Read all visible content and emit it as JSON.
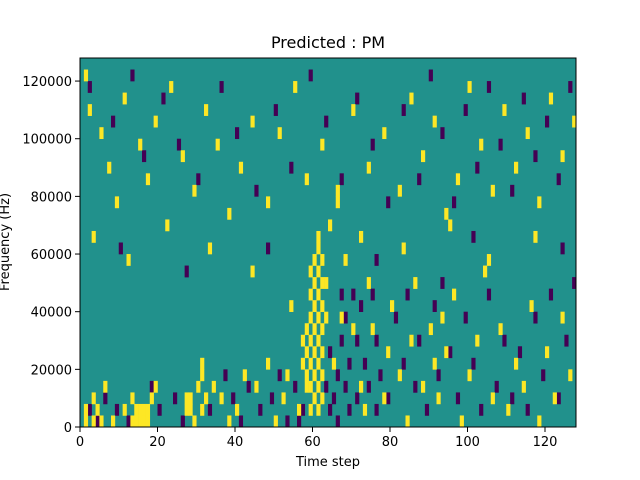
{
  "chart_data": {
    "type": "heatmap",
    "title": "Predicted : PM",
    "xlabel": "Time step",
    "ylabel": "Frequency (Hz)",
    "xlim": [
      0,
      128
    ],
    "ylim": [
      0,
      128000
    ],
    "x_ticks": [
      0,
      20,
      40,
      60,
      80,
      100,
      120
    ],
    "x_tick_labels": [
      "0",
      "20",
      "40",
      "60",
      "80",
      "100",
      "120"
    ],
    "y_ticks": [
      0,
      20000,
      40000,
      60000,
      80000,
      100000,
      120000
    ],
    "y_tick_labels": [
      "0",
      "20000",
      "40000",
      "60000",
      "80000",
      "100000",
      "120000"
    ],
    "time_steps": 128,
    "freq_bins": 32,
    "bin_height_hz": 4000,
    "colormap": {
      "low": "#440154",
      "mid": "#21918c",
      "high": "#fde725"
    },
    "background_value": "mid",
    "grid": false,
    "cells_high": [
      [
        1,
        0
      ],
      [
        1,
        1
      ],
      [
        3,
        0
      ],
      [
        3,
        2
      ],
      [
        4,
        1
      ],
      [
        5,
        0
      ],
      [
        6,
        3
      ],
      [
        8,
        0
      ],
      [
        11,
        1
      ],
      [
        13,
        2
      ],
      [
        13,
        0
      ],
      [
        14,
        1
      ],
      [
        14,
        0
      ],
      [
        15,
        0
      ],
      [
        15,
        1
      ],
      [
        16,
        1
      ],
      [
        16,
        0
      ],
      [
        17,
        0
      ],
      [
        17,
        1
      ],
      [
        18,
        2
      ],
      [
        19,
        3
      ],
      [
        27,
        1
      ],
      [
        27,
        2
      ],
      [
        28,
        1
      ],
      [
        28,
        2
      ],
      [
        29,
        0
      ],
      [
        30,
        3
      ],
      [
        31,
        1
      ],
      [
        31,
        4
      ],
      [
        31,
        5
      ],
      [
        32,
        2
      ],
      [
        34,
        3
      ],
      [
        36,
        2
      ],
      [
        38,
        0
      ],
      [
        40,
        1
      ],
      [
        42,
        4
      ],
      [
        45,
        3
      ],
      [
        48,
        5
      ],
      [
        50,
        0
      ],
      [
        52,
        2
      ],
      [
        53,
        4
      ],
      [
        54,
        10
      ],
      [
        56,
        1
      ],
      [
        57,
        5
      ],
      [
        57,
        7
      ],
      [
        58,
        3
      ],
      [
        58,
        4
      ],
      [
        58,
        6
      ],
      [
        58,
        8
      ],
      [
        59,
        1
      ],
      [
        59,
        3
      ],
      [
        59,
        5
      ],
      [
        59,
        7
      ],
      [
        59,
        9
      ],
      [
        59,
        11
      ],
      [
        59,
        13
      ],
      [
        60,
        2
      ],
      [
        60,
        4
      ],
      [
        60,
        6
      ],
      [
        60,
        8
      ],
      [
        60,
        10
      ],
      [
        60,
        12
      ],
      [
        60,
        14
      ],
      [
        61,
        1
      ],
      [
        61,
        3
      ],
      [
        61,
        5
      ],
      [
        61,
        7
      ],
      [
        61,
        9
      ],
      [
        61,
        11
      ],
      [
        61,
        13
      ],
      [
        61,
        15
      ],
      [
        61,
        16
      ],
      [
        62,
        2
      ],
      [
        62,
        4
      ],
      [
        62,
        6
      ],
      [
        62,
        8
      ],
      [
        62,
        10
      ],
      [
        62,
        12
      ],
      [
        62,
        14
      ],
      [
        63,
        9
      ],
      [
        63,
        12
      ],
      [
        64,
        17
      ],
      [
        65,
        5
      ],
      [
        66,
        20
      ],
      [
        67,
        9
      ],
      [
        68,
        14
      ],
      [
        70,
        8
      ],
      [
        72,
        3
      ],
      [
        73,
        1
      ],
      [
        74,
        12
      ],
      [
        75,
        8
      ],
      [
        78,
        2
      ],
      [
        79,
        6
      ],
      [
        80,
        10
      ],
      [
        82,
        4
      ],
      [
        84,
        0
      ],
      [
        85,
        7
      ],
      [
        86,
        12
      ],
      [
        88,
        3
      ],
      [
        90,
        8
      ],
      [
        91,
        5
      ],
      [
        92,
        2
      ],
      [
        93,
        9
      ],
      [
        94,
        6
      ],
      [
        96,
        11
      ],
      [
        98,
        0
      ],
      [
        100,
        4
      ],
      [
        102,
        7
      ],
      [
        104,
        13
      ],
      [
        106,
        2
      ],
      [
        108,
        8
      ],
      [
        110,
        1
      ],
      [
        112,
        5
      ],
      [
        114,
        3
      ],
      [
        116,
        10
      ],
      [
        118,
        0
      ],
      [
        120,
        6
      ],
      [
        122,
        2
      ],
      [
        124,
        9
      ],
      [
        126,
        4
      ],
      [
        1,
        30
      ],
      [
        2,
        27
      ],
      [
        5,
        25
      ],
      [
        7,
        22
      ],
      [
        9,
        19
      ],
      [
        11,
        28
      ],
      [
        15,
        24
      ],
      [
        17,
        21
      ],
      [
        19,
        26
      ],
      [
        23,
        29
      ],
      [
        26,
        23
      ],
      [
        29,
        20
      ],
      [
        32,
        27
      ],
      [
        35,
        24
      ],
      [
        38,
        18
      ],
      [
        41,
        22
      ],
      [
        44,
        26
      ],
      [
        48,
        19
      ],
      [
        51,
        25
      ],
      [
        55,
        29
      ],
      [
        58,
        21
      ],
      [
        62,
        24
      ],
      [
        66,
        19
      ],
      [
        70,
        27
      ],
      [
        74,
        22
      ],
      [
        78,
        25
      ],
      [
        82,
        20
      ],
      [
        85,
        28
      ],
      [
        88,
        23
      ],
      [
        91,
        26
      ],
      [
        94,
        18
      ],
      [
        97,
        21
      ],
      [
        100,
        29
      ],
      [
        103,
        24
      ],
      [
        106,
        20
      ],
      [
        109,
        27
      ],
      [
        112,
        22
      ],
      [
        115,
        25
      ],
      [
        118,
        19
      ],
      [
        121,
        28
      ],
      [
        124,
        23
      ],
      [
        127,
        26
      ],
      [
        3,
        16
      ],
      [
        12,
        14
      ],
      [
        22,
        17
      ],
      [
        33,
        15
      ],
      [
        44,
        13
      ],
      [
        72,
        16
      ],
      [
        83,
        15
      ],
      [
        95,
        17
      ],
      [
        105,
        14
      ],
      [
        117,
        16
      ]
    ],
    "cells_low": [
      [
        2,
        1
      ],
      [
        4,
        0
      ],
      [
        6,
        2
      ],
      [
        9,
        1
      ],
      [
        12,
        0
      ],
      [
        18,
        3
      ],
      [
        20,
        1
      ],
      [
        24,
        2
      ],
      [
        26,
        0
      ],
      [
        33,
        1
      ],
      [
        37,
        4
      ],
      [
        39,
        2
      ],
      [
        41,
        0
      ],
      [
        43,
        3
      ],
      [
        46,
        1
      ],
      [
        49,
        2
      ],
      [
        51,
        4
      ],
      [
        53,
        0
      ],
      [
        55,
        3
      ],
      [
        56,
        0
      ],
      [
        57,
        1
      ],
      [
        63,
        3
      ],
      [
        64,
        1
      ],
      [
        64,
        6
      ],
      [
        65,
        2
      ],
      [
        66,
        0
      ],
      [
        66,
        4
      ],
      [
        67,
        7
      ],
      [
        67,
        11
      ],
      [
        68,
        3
      ],
      [
        68,
        9
      ],
      [
        69,
        1
      ],
      [
        69,
        5
      ],
      [
        70,
        11
      ],
      [
        71,
        2
      ],
      [
        71,
        7
      ],
      [
        72,
        10
      ],
      [
        73,
        5
      ],
      [
        74,
        3
      ],
      [
        75,
        11
      ],
      [
        76,
        1
      ],
      [
        76,
        7
      ],
      [
        77,
        4
      ],
      [
        79,
        2
      ],
      [
        81,
        9
      ],
      [
        83,
        5
      ],
      [
        84,
        11
      ],
      [
        86,
        3
      ],
      [
        87,
        7
      ],
      [
        89,
        1
      ],
      [
        91,
        10
      ],
      [
        92,
        4
      ],
      [
        93,
        12
      ],
      [
        95,
        6
      ],
      [
        97,
        2
      ],
      [
        99,
        9
      ],
      [
        101,
        5
      ],
      [
        103,
        1
      ],
      [
        105,
        11
      ],
      [
        107,
        3
      ],
      [
        109,
        7
      ],
      [
        111,
        2
      ],
      [
        113,
        6
      ],
      [
        115,
        1
      ],
      [
        117,
        9
      ],
      [
        119,
        4
      ],
      [
        121,
        11
      ],
      [
        123,
        2
      ],
      [
        125,
        7
      ],
      [
        127,
        12
      ],
      [
        2,
        29
      ],
      [
        8,
        26
      ],
      [
        13,
        30
      ],
      [
        16,
        23
      ],
      [
        21,
        28
      ],
      [
        25,
        24
      ],
      [
        30,
        21
      ],
      [
        36,
        29
      ],
      [
        40,
        25
      ],
      [
        45,
        20
      ],
      [
        50,
        27
      ],
      [
        54,
        22
      ],
      [
        59,
        30
      ],
      [
        63,
        26
      ],
      [
        67,
        21
      ],
      [
        71,
        28
      ],
      [
        75,
        24
      ],
      [
        79,
        19
      ],
      [
        83,
        27
      ],
      [
        87,
        21
      ],
      [
        90,
        30
      ],
      [
        93,
        25
      ],
      [
        96,
        19
      ],
      [
        99,
        27
      ],
      [
        102,
        22
      ],
      [
        105,
        29
      ],
      [
        108,
        24
      ],
      [
        111,
        20
      ],
      [
        114,
        28
      ],
      [
        117,
        23
      ],
      [
        120,
        26
      ],
      [
        123,
        21
      ],
      [
        126,
        29
      ],
      [
        10,
        15
      ],
      [
        27,
        13
      ],
      [
        48,
        15
      ],
      [
        76,
        14
      ],
      [
        101,
        16
      ],
      [
        124,
        15
      ]
    ]
  }
}
